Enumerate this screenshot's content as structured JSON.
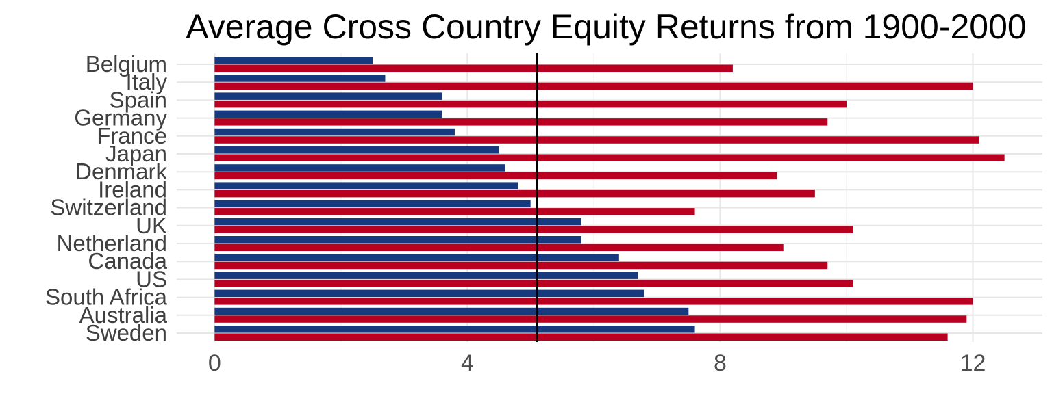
{
  "colors": {
    "series_a": "#173A7E",
    "series_b": "#BA0020",
    "reference_line": "#000000",
    "grid_major": "#E6E6E6",
    "grid_minor": "#F0F0F0",
    "title": "#000000",
    "tick_text": "#4D4D4D"
  },
  "chart_data": {
    "type": "bar",
    "orientation": "horizontal",
    "title": "Average Cross Country Equity Returns from 1900-2000",
    "xlabel": "",
    "ylabel": "",
    "categories": [
      "Belgium",
      "Italy",
      "Spain",
      "Germany",
      "France",
      "Japan",
      "Denmark",
      "Ireland",
      "Switzerland",
      "UK",
      "Netherland",
      "Canada",
      "US",
      "South Africa",
      "Australia",
      "Sweden"
    ],
    "series": [
      {
        "color": "#173A7E",
        "values": [
          2.5,
          2.7,
          3.6,
          3.6,
          3.8,
          4.5,
          4.6,
          4.8,
          5.0,
          5.8,
          5.8,
          6.4,
          6.7,
          6.8,
          7.5,
          7.6
        ]
      },
      {
        "color": "#BA0020",
        "values": [
          8.2,
          12.0,
          10.0,
          9.7,
          12.1,
          12.5,
          8.9,
          9.5,
          7.6,
          10.1,
          9.0,
          9.7,
          10.1,
          12.0,
          11.9,
          11.6
        ]
      }
    ],
    "xlim": [
      -0.6,
      13.1
    ],
    "xticks": [
      0,
      4,
      8,
      12
    ],
    "xtick_labels": [
      "0",
      "4",
      "8",
      "12"
    ],
    "reference_line_x": 5.1,
    "grid": true,
    "legend": "none"
  }
}
